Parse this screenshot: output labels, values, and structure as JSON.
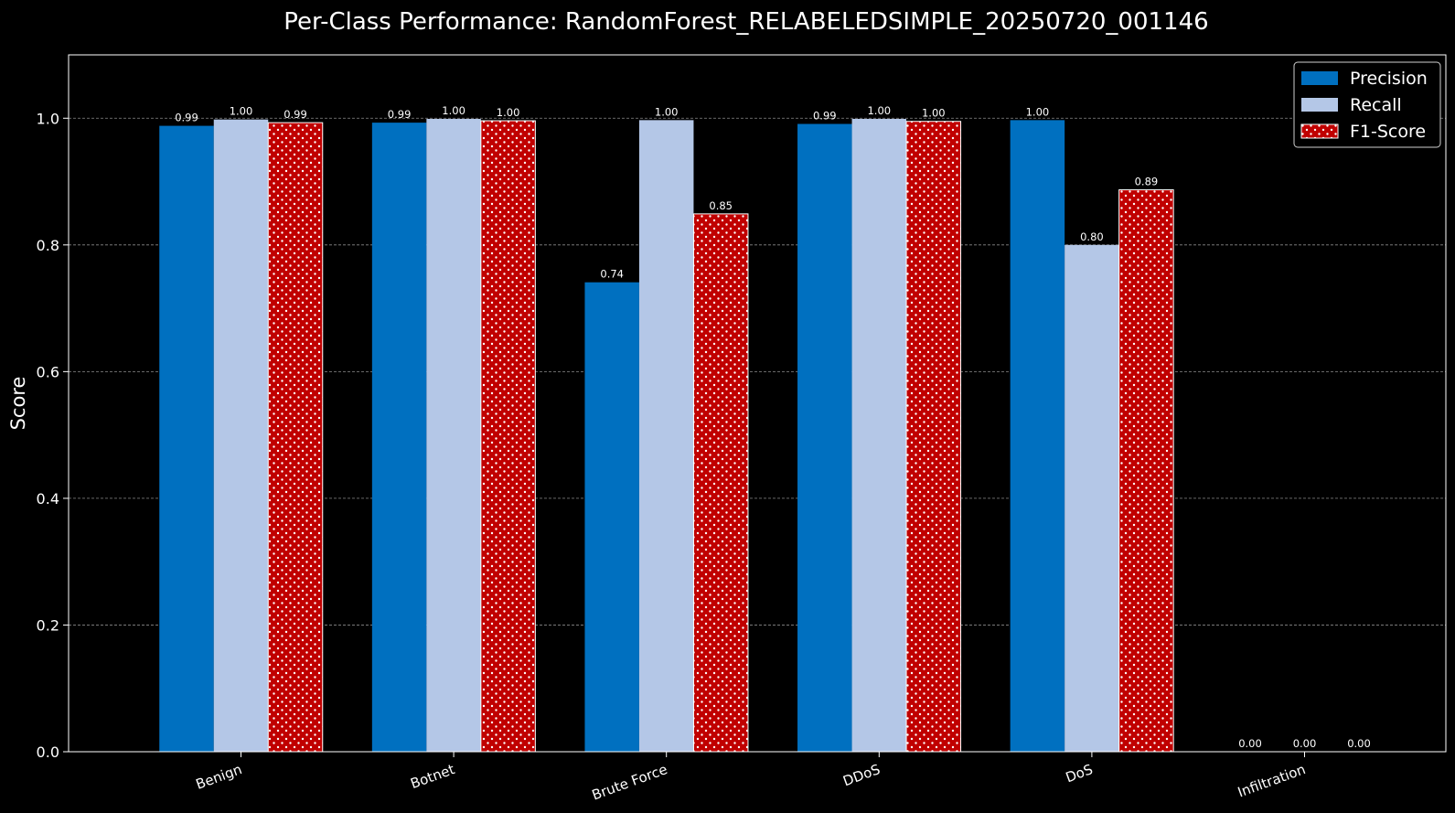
{
  "chart_data": {
    "type": "bar",
    "title": "Per-Class Performance: RandomForest_RELABELEDSIMPLE_20250720_001146",
    "xlabel": "",
    "ylabel": "Score",
    "ylim": [
      0,
      1.1
    ],
    "yticks": [
      "0.0",
      "0.2",
      "0.4",
      "0.6",
      "0.8",
      "1.0"
    ],
    "ytick_values": [
      0,
      0.2,
      0.4,
      0.6,
      0.8,
      1.0
    ],
    "grid": "horizontal dashed",
    "legend_position": "top-right",
    "categories": [
      "Benign",
      "Botnet",
      "Brute Force",
      "DDoS",
      "DoS",
      "Infiltration"
    ],
    "series": [
      {
        "name": "Precision",
        "color": "#0070c0",
        "hatch": "none",
        "values": [
          0.988,
          0.993,
          0.741,
          0.991,
          0.997,
          0.0
        ],
        "labels": [
          "0.99",
          "0.99",
          "0.74",
          "0.99",
          "1.00",
          "0.00"
        ]
      },
      {
        "name": "Recall",
        "color": "#b4c7e7",
        "hatch": "none",
        "values": [
          0.998,
          0.999,
          0.997,
          0.999,
          0.8,
          0.0
        ],
        "labels": [
          "1.00",
          "1.00",
          "1.00",
          "1.00",
          "0.80",
          "0.00"
        ]
      },
      {
        "name": "F1-Score",
        "color": "#c00000",
        "hatch": "dots",
        "values": [
          0.993,
          0.996,
          0.849,
          0.995,
          0.887,
          0.0
        ],
        "labels": [
          "0.99",
          "1.00",
          "0.85",
          "1.00",
          "0.89",
          "0.00"
        ]
      }
    ]
  }
}
